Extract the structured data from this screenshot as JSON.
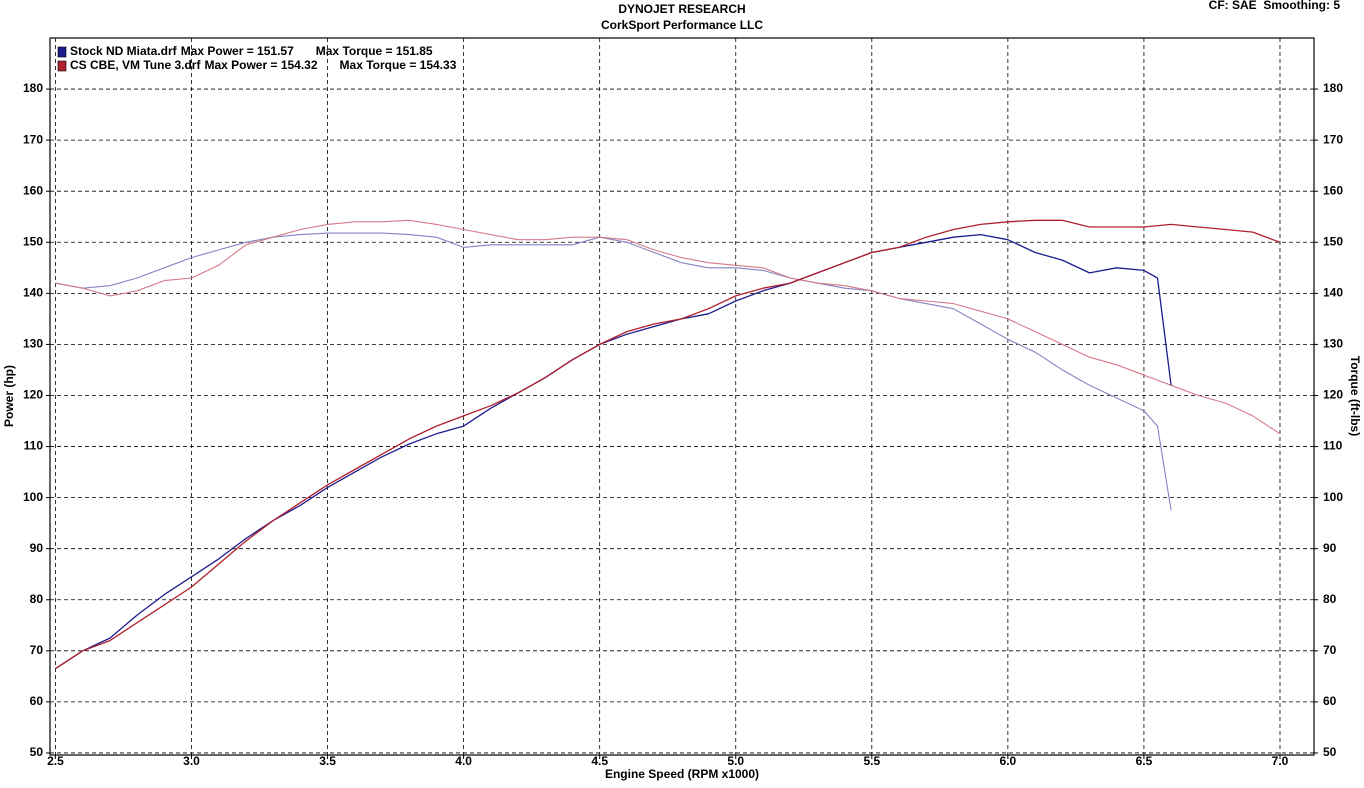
{
  "chart_data": {
    "type": "line",
    "title": "DYNOJET RESEARCH",
    "subtitle": "CorkSport Performance LLC",
    "corner_note": "CF: SAE  Smoothing: 5",
    "xlabel": "Engine Speed (RPM x1000)",
    "ylabel": "Power (hp)",
    "y2label": "Torque (ft-lbs)",
    "xlim": [
      2.48,
      7.125
    ],
    "ylim": [
      49.6,
      190
    ],
    "y2lim": [
      49.6,
      190
    ],
    "xticks": [
      2.5,
      {
        "value": 3,
        "label": "3.0"
      },
      3.5,
      {
        "value": 4,
        "label": "4.0"
      },
      4.5,
      {
        "value": 5,
        "label": "5.0"
      },
      5.5,
      {
        "value": 6,
        "label": "6.0"
      },
      6.5,
      {
        "value": 7,
        "label": "7.0"
      }
    ],
    "yticks": [
      50,
      60,
      70,
      80,
      90,
      100,
      110,
      120,
      130,
      140,
      150,
      160,
      170,
      180
    ],
    "y2ticks": [
      50,
      60,
      70,
      80,
      90,
      100,
      110,
      120,
      130,
      140,
      150,
      160,
      170,
      180
    ],
    "grid": true,
    "series": [
      {
        "name": "Stock ND Miata.drf",
        "max_power_label": "Max Power = 151.57",
        "max_torque_label": "Max Torque = 151.85",
        "color": "#1c1c8e",
        "x": [
          2.5,
          2.6,
          2.7,
          2.8,
          2.9,
          3.0,
          3.1,
          3.2,
          3.3,
          3.4,
          3.5,
          3.6,
          3.7,
          3.8,
          3.9,
          4.0,
          4.1,
          4.2,
          4.3,
          4.4,
          4.5,
          4.6,
          4.7,
          4.8,
          4.9,
          5.0,
          5.1,
          5.2,
          5.3,
          5.4,
          5.5,
          5.6,
          5.7,
          5.8,
          5.9,
          6.0,
          6.1,
          6.2,
          6.3,
          6.4,
          6.5,
          6.55,
          6.6
        ],
        "values": [
          66.5,
          70,
          72.5,
          77,
          81,
          84.5,
          88,
          92,
          95.5,
          98.5,
          102,
          105,
          108,
          110.5,
          112.5,
          114,
          117.5,
          120.5,
          123.5,
          127,
          130,
          132,
          133.5,
          135,
          136,
          138.5,
          140.5,
          142,
          144,
          146,
          148,
          149,
          150,
          151,
          151.5,
          150.5,
          148,
          146.5,
          144,
          145,
          144.5,
          143,
          122
        ],
        "torque": {
          "color": "#8484c4",
          "axis": "y2",
          "values": [
            142,
            141,
            141.5,
            143,
            145,
            147,
            148.5,
            150,
            151,
            151.5,
            151.8,
            151.8,
            151.8,
            151.5,
            151,
            149,
            149.5,
            149.5,
            149.5,
            149.5,
            151,
            150,
            148,
            146,
            145,
            145,
            144.5,
            143,
            142,
            141,
            140.5,
            139,
            138,
            137,
            134,
            131,
            128.5,
            125,
            122,
            119.5,
            117,
            114,
            97.5
          ]
        }
      },
      {
        "name": "CS CBE, VM Tune 3.drf",
        "max_power_label": "Max Power = 154.32",
        "max_torque_label": "Max Torque = 154.33",
        "color": "#b0202c",
        "x": [
          2.5,
          2.6,
          2.7,
          2.8,
          2.9,
          3.0,
          3.1,
          3.2,
          3.3,
          3.4,
          3.5,
          3.6,
          3.7,
          3.8,
          3.9,
          4.0,
          4.1,
          4.2,
          4.3,
          4.4,
          4.5,
          4.6,
          4.7,
          4.8,
          4.9,
          5.0,
          5.1,
          5.2,
          5.3,
          5.4,
          5.5,
          5.6,
          5.7,
          5.8,
          5.9,
          6.0,
          6.1,
          6.2,
          6.3,
          6.4,
          6.5,
          6.6,
          6.7,
          6.8,
          6.9,
          7.0
        ],
        "values": [
          66.5,
          70,
          72,
          75.5,
          79,
          82.5,
          87,
          91.5,
          95.5,
          99,
          102.5,
          105.5,
          108.5,
          111.5,
          114,
          116,
          118,
          120.5,
          123.5,
          127,
          130,
          132.5,
          134,
          135,
          137,
          139.5,
          141,
          142,
          144,
          146,
          148,
          149,
          151,
          152.5,
          153.5,
          154,
          154.3,
          154.3,
          153,
          153,
          153,
          153.5,
          153,
          152.5,
          152,
          150
        ],
        "torque": {
          "color": "#d67a88",
          "axis": "y2",
          "values": [
            142,
            141,
            139.5,
            140.5,
            142.5,
            143,
            145.5,
            149.5,
            151,
            152.5,
            153.5,
            154,
            154,
            154.3,
            153.5,
            152.5,
            151.5,
            150.5,
            150.5,
            151,
            151,
            150.5,
            148.5,
            147,
            146,
            145.5,
            145,
            143,
            142,
            141.5,
            140.5,
            139,
            138.5,
            138,
            136.5,
            135,
            132.5,
            130,
            127.5,
            126,
            124,
            122,
            120,
            118.5,
            116,
            112.5
          ]
        }
      }
    ]
  }
}
